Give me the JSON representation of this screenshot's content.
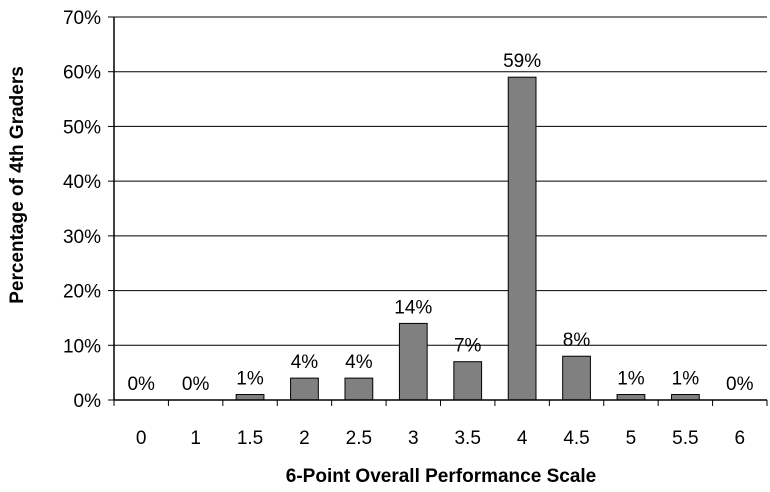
{
  "chart_data": {
    "type": "bar",
    "categories": [
      "0",
      "1",
      "1.5",
      "2",
      "2.5",
      "3",
      "3.5",
      "4",
      "4.5",
      "5",
      "5.5",
      "6"
    ],
    "values": [
      0,
      0,
      1,
      4,
      4,
      14,
      7,
      59,
      8,
      1,
      1,
      0
    ],
    "data_labels": [
      "0%",
      "0%",
      "1%",
      "4%",
      "4%",
      "14%",
      "7%",
      "59%",
      "8%",
      "1%",
      "1%",
      "0%"
    ],
    "ylim": [
      0,
      70
    ],
    "yticks": [
      0,
      10,
      20,
      30,
      40,
      50,
      60,
      70
    ],
    "ytick_labels": [
      "0%",
      "10%",
      "20%",
      "30%",
      "40%",
      "50%",
      "60%",
      "70%"
    ],
    "xlabel": "6-Point Overall Performance Scale",
    "ylabel": "Percentage of 4th Graders",
    "grid": true,
    "legend": "none",
    "bar_color": "#808080"
  }
}
